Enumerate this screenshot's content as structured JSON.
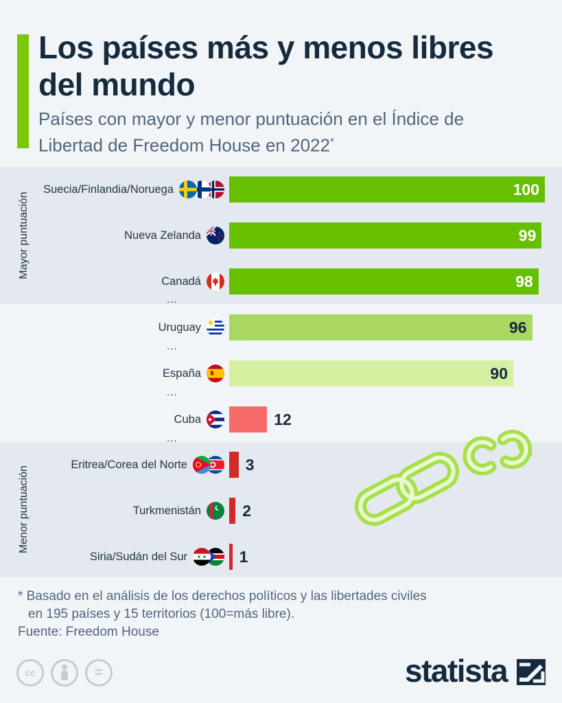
{
  "title": "Los países más y menos libres del mundo",
  "subtitle": "Países con mayor y menor puntuación en el Índice de Libertad de Freedom House en 2022",
  "subtitle_mark": "*",
  "band_labels": {
    "top": "Mayor puntuación",
    "bottom": "Menor puntuación"
  },
  "ellipsis": "...",
  "chart_data": {
    "type": "bar",
    "orientation": "horizontal",
    "xlim": [
      0,
      100
    ],
    "categories": [
      "Suecia/Finlandia/Noruega",
      "Nueva Zelanda",
      "Canadá",
      "Uruguay",
      "España",
      "Cuba",
      "Eritrea/Corea del Norte",
      "Turkmenistán",
      "Siria/Sudán del Sur"
    ],
    "values": [
      100,
      99,
      98,
      96,
      90,
      12,
      3,
      2,
      1
    ],
    "colors": [
      "#66bf00",
      "#66bf00",
      "#66bf00",
      "#a8d862",
      "#d4f0a0",
      "#f86b6b",
      "#d02a2a",
      "#d02a2a",
      "#d02a2a"
    ],
    "label_colors": [
      "#ffffff",
      "#ffffff",
      "#ffffff",
      "#162a3e",
      "#162a3e",
      "#162a3e",
      "#162a3e",
      "#162a3e",
      "#162a3e"
    ],
    "flags": [
      [
        "sweden-flag",
        "finland-flag",
        "norway-flag"
      ],
      [
        "new-zealand-flag"
      ],
      [
        "canada-flag"
      ],
      [
        "uruguay-flag"
      ],
      [
        "spain-flag"
      ],
      [
        "cuba-flag"
      ],
      [
        "eritrea-flag",
        "north-korea-flag"
      ],
      [
        "turkmenistan-flag"
      ],
      [
        "syria-flag",
        "south-sudan-flag"
      ]
    ]
  },
  "footnote": {
    "line1": "* Basado en el análisis de los derechos políticos y las libertades civiles",
    "line2": "en 195 países y 15 territorios (100=más libre)."
  },
  "source": "Fuente: Freedom House",
  "license_icons": [
    "cc-icon",
    "attribution-icon",
    "no-derivatives-icon"
  ],
  "license_glyphs": [
    "cc",
    "",
    "="
  ],
  "brand": "statista",
  "colors": {
    "accent": "#7ac70c",
    "band": "#e4e9ef",
    "background": "#f2f5f8",
    "title": "#162a3e"
  }
}
